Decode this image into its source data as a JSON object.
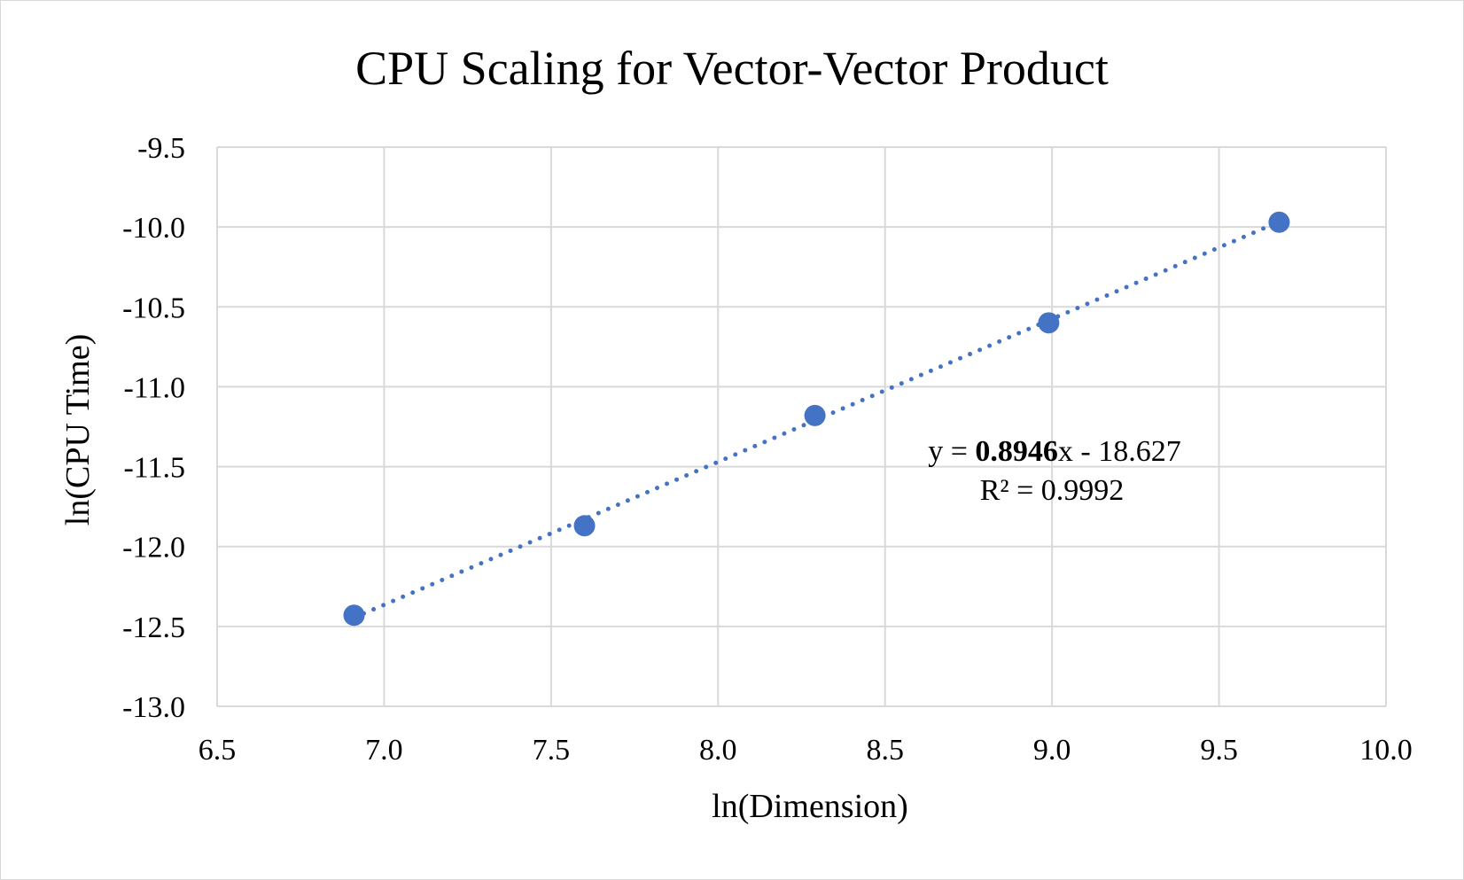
{
  "chart_data": {
    "type": "scatter",
    "title": "CPU Scaling for Vector-Vector Product",
    "xlabel": "ln(Dimension)",
    "ylabel": "ln(CPU Time)",
    "xlim": [
      6.5,
      10.0
    ],
    "ylim": [
      -13.0,
      -9.5
    ],
    "xticks": [
      "6.5",
      "7.0",
      "7.5",
      "8.0",
      "8.5",
      "9.0",
      "9.5",
      "10.0"
    ],
    "yticks": [
      "-9.5",
      "-10.0",
      "-10.5",
      "-11.0",
      "-11.5",
      "-12.0",
      "-12.5",
      "-13.0"
    ],
    "grid": true,
    "series": [
      {
        "x": [
          6.91,
          7.6,
          8.29,
          8.99,
          9.68
        ],
        "y": [
          -12.43,
          -11.87,
          -11.18,
          -10.6,
          -9.97
        ],
        "color": "#4472c4"
      }
    ],
    "trendline": {
      "type": "linear",
      "slope": 0.8946,
      "intercept": -18.627,
      "style": "dotted",
      "color": "#4472c4",
      "equation_prefix": "y = ",
      "equation_slope": "0.8946",
      "equation_suffix": "x - 18.627",
      "r2_label": "R² = 0.9992"
    }
  }
}
